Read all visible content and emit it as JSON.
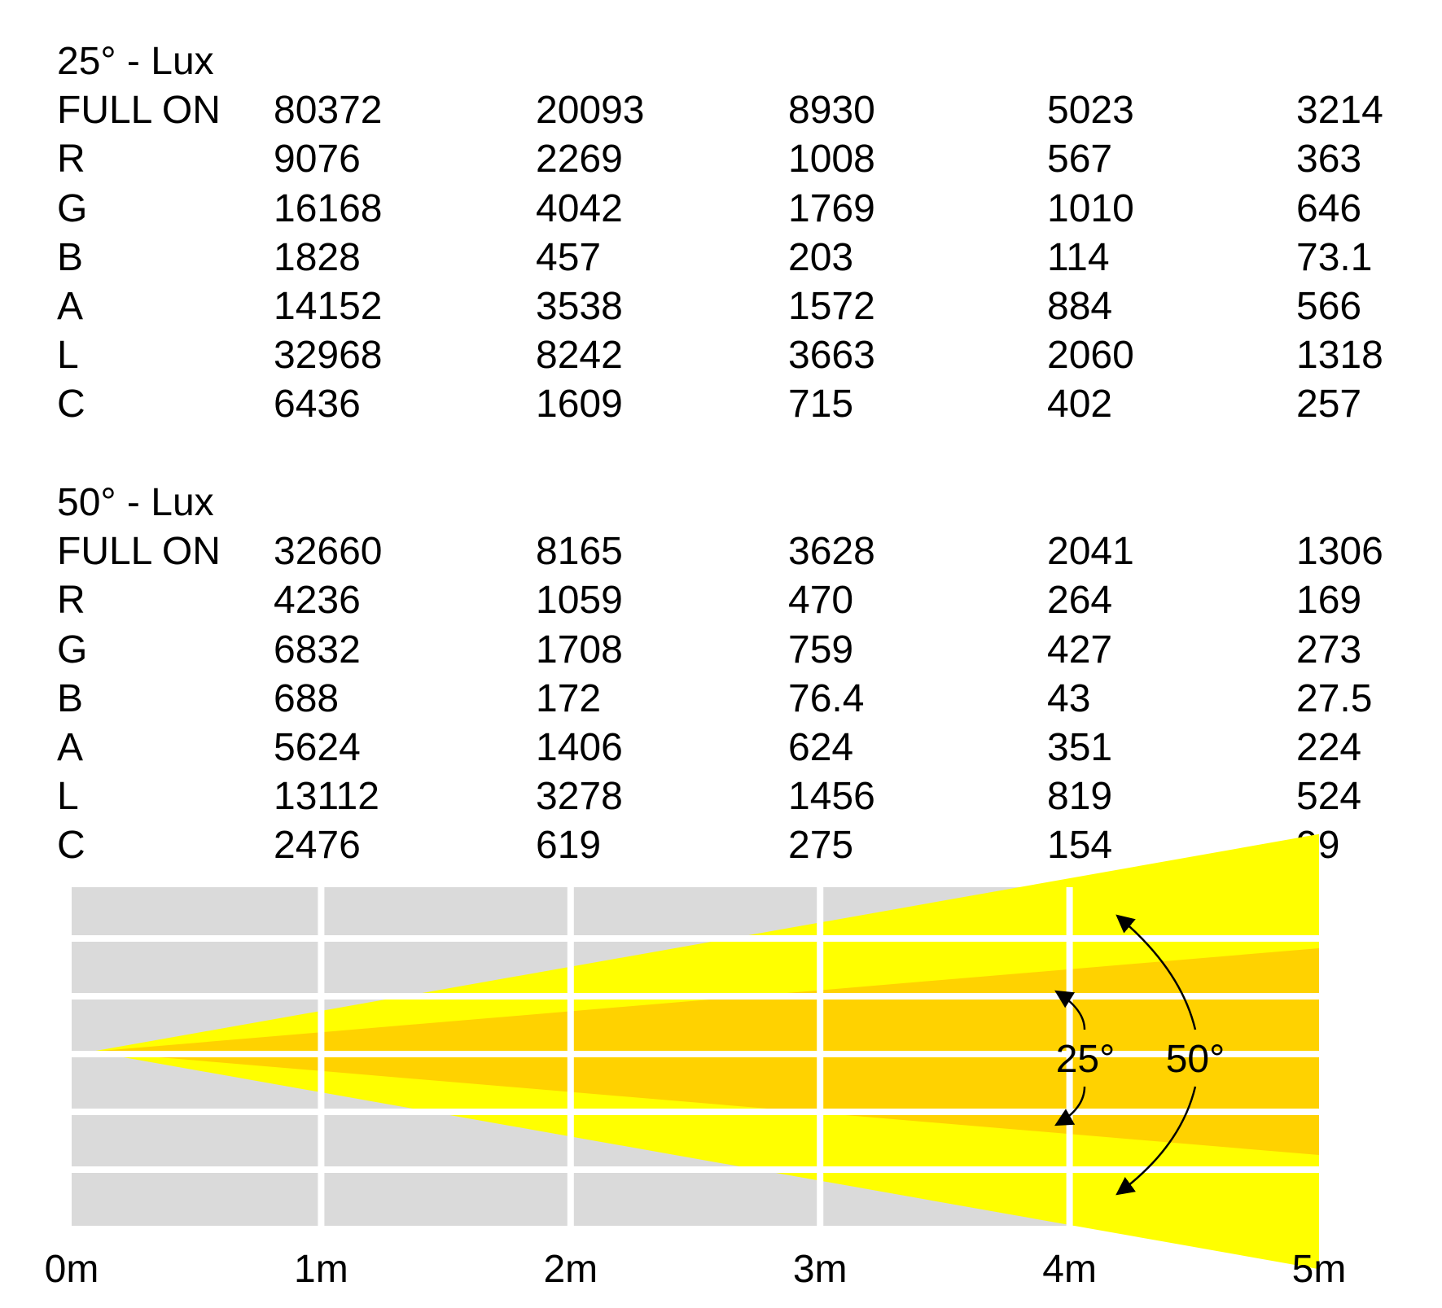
{
  "tables": [
    {
      "title": "25° - Lux",
      "rows": [
        {
          "label": "FULL ON",
          "values": [
            "80372",
            "20093",
            "8930",
            "5023",
            "3214"
          ]
        },
        {
          "label": "R",
          "values": [
            "9076",
            "2269",
            "1008",
            "567",
            "363"
          ]
        },
        {
          "label": "G",
          "values": [
            "16168",
            "4042",
            "1769",
            "1010",
            "646"
          ]
        },
        {
          "label": "B",
          "values": [
            "1828",
            "457",
            "203",
            "114",
            "73.1"
          ]
        },
        {
          "label": "A",
          "values": [
            "14152",
            "3538",
            "1572",
            "884",
            "566"
          ]
        },
        {
          "label": "L",
          "values": [
            "32968",
            "8242",
            "3663",
            "2060",
            "1318"
          ]
        },
        {
          "label": "C",
          "values": [
            "6436",
            "1609",
            "715",
            "402",
            "257"
          ]
        }
      ]
    },
    {
      "title": "50° - Lux",
      "rows": [
        {
          "label": "FULL ON",
          "values": [
            "32660",
            "8165",
            "3628",
            "2041",
            "1306"
          ]
        },
        {
          "label": "R",
          "values": [
            "4236",
            "1059",
            "470",
            "264",
            "169"
          ]
        },
        {
          "label": "G",
          "values": [
            "6832",
            "1708",
            "759",
            "427",
            "273"
          ]
        },
        {
          "label": "B",
          "values": [
            "688",
            "172",
            "76.4",
            "43",
            "27.5"
          ]
        },
        {
          "label": "A",
          "values": [
            "5624",
            "1406",
            "624",
            "351",
            "224"
          ]
        },
        {
          "label": "L",
          "values": [
            "13112",
            "3278",
            "1456",
            "819",
            "524"
          ]
        },
        {
          "label": "C",
          "values": [
            "2476",
            "619",
            "275",
            "154",
            "99"
          ]
        }
      ]
    }
  ],
  "chart_data": {
    "type": "beam-diagram",
    "x_ticks": [
      "0m",
      "1m",
      "2m",
      "3m",
      "4m",
      "5m"
    ],
    "xlim": [
      0,
      5
    ],
    "beams": [
      {
        "label": "50°",
        "angle_deg": 50,
        "color": "#ffff00"
      },
      {
        "label": "25°",
        "angle_deg": 25,
        "color": "#ffd200"
      }
    ],
    "grid": true,
    "colors": {
      "grid_cell": "#dadada",
      "grid_line": "#ffffff",
      "arrow": "#000000"
    }
  }
}
